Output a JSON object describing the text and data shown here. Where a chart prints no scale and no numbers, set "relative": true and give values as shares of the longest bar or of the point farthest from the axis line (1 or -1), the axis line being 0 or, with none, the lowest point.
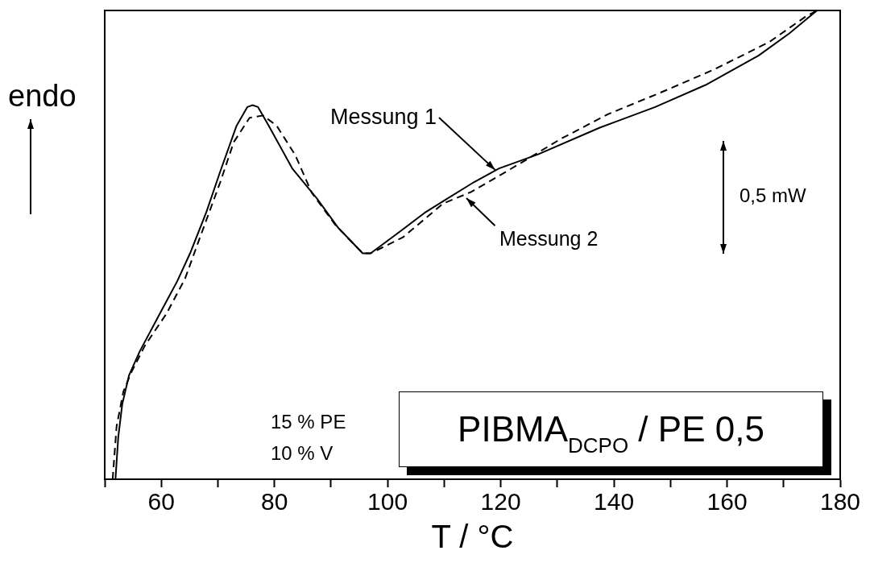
{
  "chart_data": {
    "type": "line",
    "title": "PIBMA$_{DCPO}$ / PE 0,5",
    "xlabel": "T / °C",
    "ylabel": "endo",
    "relative": true,
    "xlim": [
      50,
      180
    ],
    "xticks": [
      {
        "value": 50,
        "label": null
      },
      60,
      {
        "value": 70,
        "label": null
      },
      80,
      {
        "value": 90,
        "label": null
      },
      100,
      {
        "value": 110,
        "label": null
      },
      120,
      {
        "value": 130,
        "label": null
      },
      140,
      {
        "value": 150,
        "label": null
      },
      160,
      {
        "value": 170,
        "label": null
      },
      180
    ],
    "grid": false,
    "legend": false,
    "marker": "none",
    "annotations": [
      "0,5 mW",
      "15 % PE",
      "10 % V",
      {
        "text": "Messung 1",
        "x": 119,
        "y": 0.66
      },
      {
        "text": "Messung 2",
        "x": 114,
        "y": 0.6
      }
    ],
    "series": [
      {
        "color": "#000000",
        "line_style": "solid",
        "x": [
          51.9,
          52.4,
          53.1,
          54.3,
          56.2,
          60.0,
          62.8,
          65.2,
          68.0,
          70.4,
          73.3,
          75.2,
          76.1,
          77.1,
          79.0,
          83.2,
          87.5,
          91.3,
          95.6,
          97.0,
          101.8,
          106.5,
          109.8,
          115.3,
          119.7,
          126.6,
          137.5,
          147.3,
          156.2,
          165.6,
          171.0,
          175.9
        ],
        "values": [
          0,
          0.091,
          0.16,
          0.222,
          0.273,
          0.359,
          0.422,
          0.485,
          0.571,
          0.656,
          0.754,
          0.794,
          0.798,
          0.794,
          0.754,
          0.662,
          0.599,
          0.536,
          0.482,
          0.482,
          0.525,
          0.568,
          0.593,
          0.634,
          0.663,
          0.693,
          0.75,
          0.794,
          0.841,
          0.904,
          0.951,
          1
        ]
      },
      {
        "color": "#000000",
        "line_style": "dashed",
        "x": [
          51.4,
          52.1,
          53.3,
          54.7,
          57.1,
          60.9,
          64.2,
          66.6,
          70.4,
          72.8,
          75.6,
          78.0,
          80.4,
          83.7,
          86.6,
          90.8,
          95.6,
          97.0,
          102.7,
          109.8,
          114.8,
          123.2,
          130.6,
          139.0,
          147.9,
          157.7,
          167.5,
          173.9,
          175.9
        ],
        "values": [
          0,
          0.113,
          0.187,
          0.228,
          0.285,
          0.353,
          0.428,
          0.508,
          0.633,
          0.719,
          0.771,
          0.776,
          0.754,
          0.691,
          0.611,
          0.542,
          0.482,
          0.482,
          0.516,
          0.588,
          0.613,
          0.672,
          0.726,
          0.779,
          0.823,
          0.874,
          0.933,
          0.987,
          1
        ]
      }
    ]
  }
}
